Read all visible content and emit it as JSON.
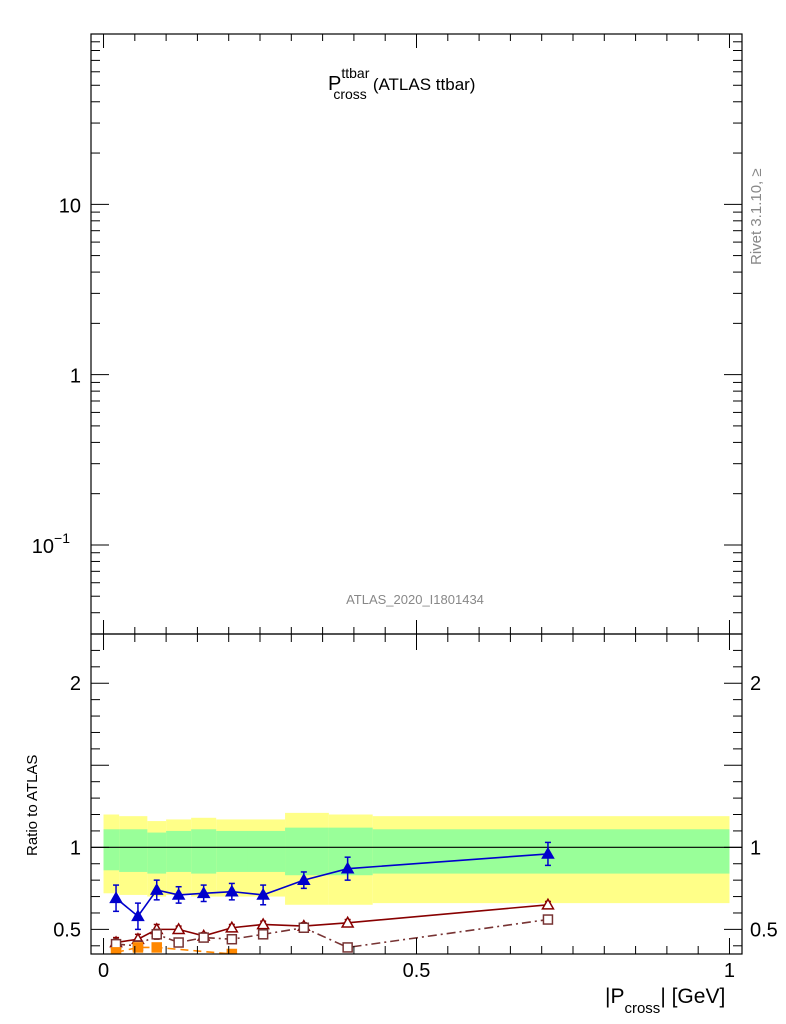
{
  "title": {
    "main": "P",
    "superscript": "ttbar",
    "subscript": "cross",
    "suffix": "(ATLAS ttbar)"
  },
  "analysis_label": "ATLAS_2020_I1801434",
  "rivet_label": "Rivet 3.1.10, ≥",
  "xlabel": {
    "prefix": "|P",
    "subscript": "cross",
    "suffix": "| [GeV]"
  },
  "ratio_ylabel": "Ratio to ATLAS",
  "colors": {
    "band_outer": "#ffff88",
    "band_inner": "#99ff99",
    "blue": "#0000cc",
    "darkred": "#880000",
    "brown": "#773333",
    "orange": "#ff8800"
  },
  "chart_data": [
    {
      "type": "scatter",
      "panel": "main",
      "yscale": "log",
      "ylim": [
        0.03,
        100
      ],
      "xlim": [
        -0.02,
        1.02
      ],
      "yticks": [
        {
          "value": 10,
          "label": "10"
        },
        {
          "value": 1,
          "label": "1"
        },
        {
          "value": 0.1,
          "label": "10",
          "exponent": "−1"
        }
      ],
      "series": []
    },
    {
      "type": "line",
      "panel": "ratio",
      "xlim": [
        -0.02,
        1.02
      ],
      "ylim": [
        0.35,
        2.3
      ],
      "xticks": [
        {
          "value": 0,
          "label": "0"
        },
        {
          "value": 0.5,
          "label": "0.5"
        },
        {
          "value": 1,
          "label": "1"
        }
      ],
      "yticks": [
        {
          "value": 0.5,
          "label": "0.5"
        },
        {
          "value": 1,
          "label": "1"
        },
        {
          "value": 2,
          "label": "2"
        }
      ],
      "bands": {
        "bins": [
          [
            0.0,
            0.025,
            0.72,
            1.2,
            0.86,
            1.11
          ],
          [
            0.025,
            0.07,
            0.71,
            1.19,
            0.85,
            1.11
          ],
          [
            0.07,
            0.1,
            0.7,
            1.16,
            0.84,
            1.09
          ],
          [
            0.1,
            0.14,
            0.71,
            1.17,
            0.85,
            1.1
          ],
          [
            0.14,
            0.18,
            0.7,
            1.18,
            0.84,
            1.11
          ],
          [
            0.18,
            0.23,
            0.7,
            1.17,
            0.85,
            1.1
          ],
          [
            0.23,
            0.29,
            0.7,
            1.17,
            0.85,
            1.1
          ],
          [
            0.29,
            0.36,
            0.65,
            1.21,
            0.83,
            1.12
          ],
          [
            0.36,
            0.43,
            0.65,
            1.2,
            0.83,
            1.12
          ],
          [
            0.43,
            1.0,
            0.66,
            1.19,
            0.84,
            1.11
          ]
        ]
      },
      "series": [
        {
          "marker": "filled-triangle",
          "style": "solid",
          "color": "#0000cc",
          "points": [
            [
              0.02,
              0.69,
              0.08
            ],
            [
              0.055,
              0.58,
              0.08
            ],
            [
              0.085,
              0.74,
              0.06
            ],
            [
              0.12,
              0.71,
              0.05
            ],
            [
              0.16,
              0.72,
              0.05
            ],
            [
              0.205,
              0.73,
              0.05
            ],
            [
              0.255,
              0.71,
              0.06
            ],
            [
              0.32,
              0.8,
              0.05
            ],
            [
              0.39,
              0.87,
              0.07
            ],
            [
              0.71,
              0.96,
              0.07
            ]
          ]
        },
        {
          "marker": "open-triangle",
          "style": "solid",
          "color": "#880000",
          "points": [
            [
              0.02,
              0.42,
              0.03
            ],
            [
              0.055,
              0.44,
              0.03
            ],
            [
              0.085,
              0.5,
              0.03
            ],
            [
              0.12,
              0.5,
              0.02
            ],
            [
              0.16,
              0.46,
              0.02
            ],
            [
              0.205,
              0.51,
              0.02
            ],
            [
              0.255,
              0.53,
              0.02
            ],
            [
              0.32,
              0.52,
              0.02
            ],
            [
              0.39,
              0.54,
              0.02
            ],
            [
              0.71,
              0.65,
              0.02
            ]
          ]
        },
        {
          "marker": "open-square",
          "style": "dashdot",
          "color": "#773333",
          "points": [
            [
              0.02,
              0.41,
              0.03
            ],
            [
              0.055,
              0.4,
              0.03
            ],
            [
              0.085,
              0.47,
              0.03
            ],
            [
              0.12,
              0.42,
              0.02
            ],
            [
              0.16,
              0.45,
              0.02
            ],
            [
              0.205,
              0.44,
              0.02
            ],
            [
              0.255,
              0.47,
              0.02
            ],
            [
              0.32,
              0.51,
              0.02
            ],
            [
              0.39,
              0.39,
              0.02
            ],
            [
              0.71,
              0.56,
              0.02
            ]
          ]
        },
        {
          "marker": "filled-square",
          "style": "dashed",
          "color": "#ff8800",
          "points": [
            [
              0.02,
              0.36,
              0.02
            ],
            [
              0.055,
              0.39,
              0.02
            ],
            [
              0.085,
              0.39,
              0.02
            ],
            [
              0.205,
              0.35,
              0.02
            ]
          ]
        }
      ],
      "reference_line": 1
    }
  ]
}
